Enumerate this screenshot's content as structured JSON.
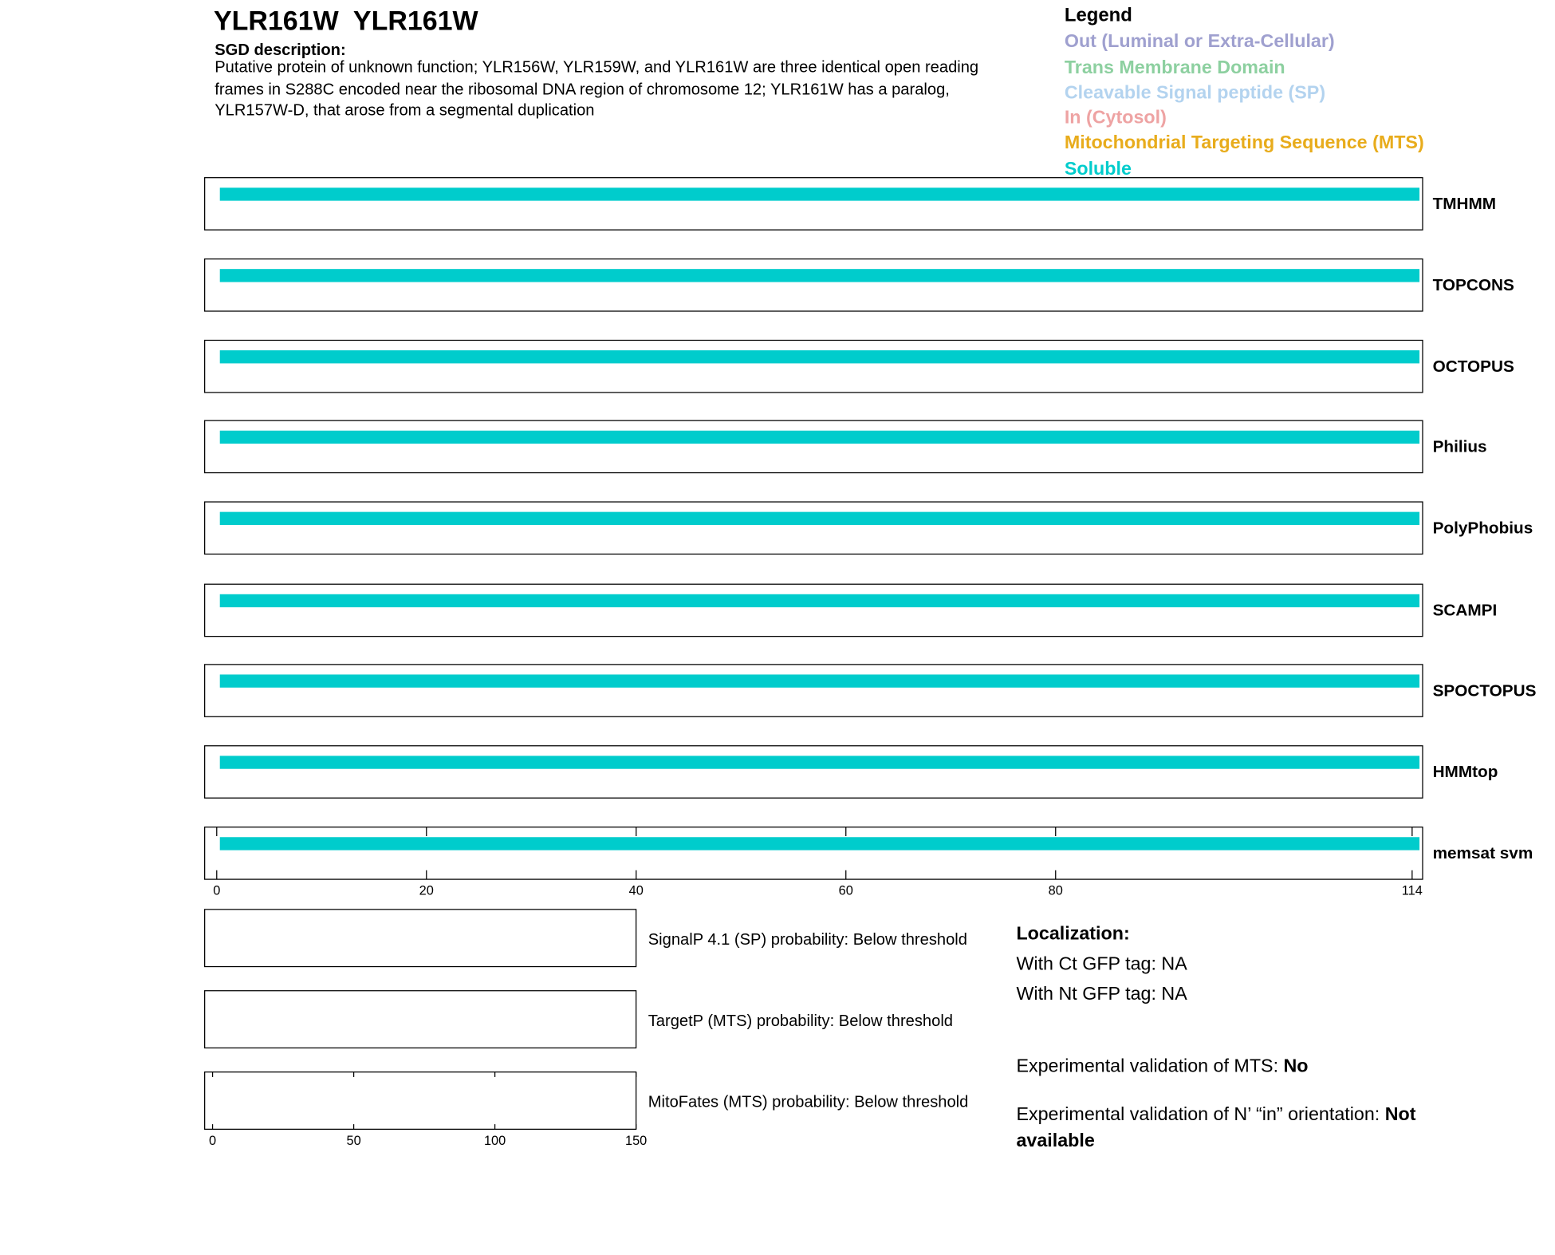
{
  "header": {
    "title": "YLR161W  YLR161W",
    "description_title": "SGD description:",
    "description": "Putative protein of unknown function; YLR156W, YLR159W, and YLR161W are three identical open reading frames in S288C encoded near the ribosomal DNA region of chromosome 12; YLR161W has a paralog, YLR157W-D, that arose from a segmental duplication"
  },
  "chart_data": [
    {
      "type": "track",
      "legend_title": "Legend",
      "categories": [
        "TMHMM",
        "TOPCONS",
        "OCTOPUS",
        "Philius",
        "PolyPhobius",
        "SCAMPI",
        "SPOCTOPUS",
        "HMMtop",
        "memsat svm"
      ],
      "series": [
        {
          "name": "Out (Luminal or Extra-Cellular)",
          "color": "#9fa0cf"
        },
        {
          "name": "Trans Membrane Domain",
          "color": "#8dd0a0"
        },
        {
          "name": "Cleavable Signal peptide (SP)",
          "color": "#b3d3ef"
        },
        {
          "name": "In (Cytosol)",
          "color": "#eea3a3"
        },
        {
          "name": "Mitochondrial Targeting Sequence (MTS)",
          "color": "#e8ac1c"
        },
        {
          "name": "Soluble",
          "color": "#00cccc",
          "ranges": [
            [
              0.3,
              114.7
            ],
            [
              0.3,
              114.7
            ],
            [
              0.3,
              114.7
            ],
            [
              0.3,
              114.7
            ],
            [
              0.3,
              114.7
            ],
            [
              0.3,
              114.7
            ],
            [
              0.3,
              114.7
            ],
            [
              0.3,
              114.7
            ],
            [
              0.3,
              114.7
            ]
          ]
        }
      ],
      "xlim": [
        -1.15,
        115
      ],
      "xticks": [
        0,
        20,
        40,
        60,
        80,
        114
      ]
    },
    {
      "type": "probability",
      "categories": [
        "SignalP 4.1 (SP) probability: Below threshold",
        "TargetP (MTS) probability: Below threshold",
        "MitoFates (MTS) probability: Below threshold"
      ],
      "xlim": [
        -2.8,
        150
      ],
      "xticks": [
        0,
        50,
        100,
        150
      ]
    }
  ],
  "localization": {
    "title": "Localization:",
    "lines": [
      {
        "label": "With Ct GFP tag:",
        "value": "NA"
      },
      {
        "label": "With Nt GFP tag:",
        "value": "NA"
      }
    ],
    "validations": [
      {
        "label": "Experimental validation of MTS:",
        "value": "No"
      },
      {
        "label": "Experimental validation of N’ “in” orientation:",
        "value": "Not available"
      }
    ]
  }
}
